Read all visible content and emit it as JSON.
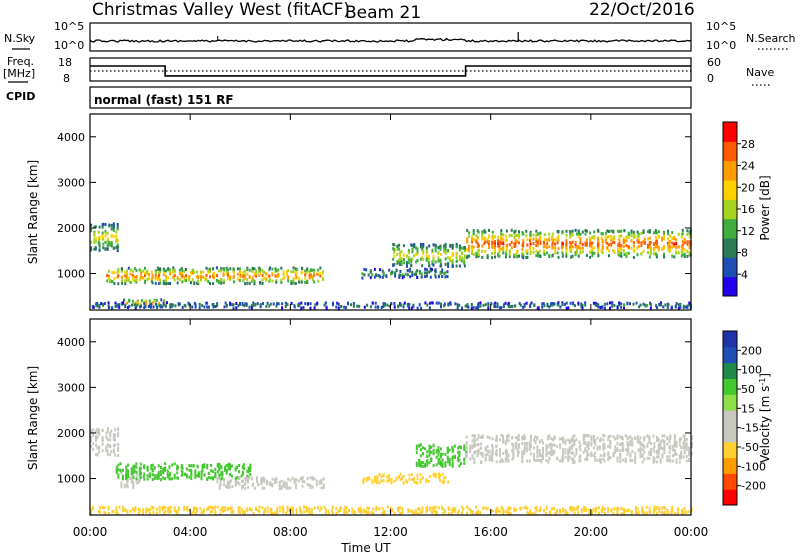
{
  "header": {
    "radar_name": "Christmas Valley West (fitACF)",
    "beam": "Beam 21",
    "date": "22/Oct/2016"
  },
  "status": {
    "nsky_label": "N.Sky",
    "nsky_ticks": [
      "10^5",
      "10^0"
    ],
    "nsearch_label": "N.Search",
    "nsearch_ticks": [
      "10^5",
      "10^0"
    ],
    "freq_label": "Freq.",
    "freq_unit": "[MHz]",
    "freq_ticks": [
      "18",
      "8"
    ],
    "nave_label": "Nave",
    "nave_ticks": [
      "60",
      "0"
    ],
    "freq_segments": [
      {
        "start_h": 0,
        "end_h": 3,
        "mhz": 14.5
      },
      {
        "start_h": 3,
        "end_h": 15,
        "mhz": 10.2
      },
      {
        "start_h": 15,
        "end_h": 24,
        "mhz": 14.5
      }
    ],
    "cpid_label": "CPID",
    "cpid_value": "normal (fast) 151 RF"
  },
  "colors": {
    "power": [
      "#2200ee",
      "#1f4fb4",
      "#2a7a55",
      "#3fae3f",
      "#a6d41e",
      "#ffd000",
      "#ff9c00",
      "#ff5a00",
      "#ff0000"
    ],
    "velocity": [
      "#ff0000",
      "#ff4a00",
      "#ff9c00",
      "#ffd030",
      "#c8c8c0",
      "#c8c8c0",
      "#8ee048",
      "#44c830",
      "#1f8a4a",
      "#1f4fb4",
      "#2233aa"
    ],
    "trace": "#000000"
  },
  "chart_data": [
    {
      "type": "heatmap",
      "panel": "power",
      "ylabel": "Slant Range [km]",
      "yticks": [
        "1000",
        "2000",
        "3000",
        "4000"
      ],
      "ylim": [
        200,
        4500
      ],
      "xlim": [
        0,
        24
      ],
      "colorbar_label": "Power [dB]",
      "colorbar_ticks": [
        "4",
        "8",
        "12",
        "16",
        "20",
        "24",
        "28"
      ],
      "clim": [
        0,
        32
      ],
      "regions": [
        {
          "start_h": 0.0,
          "end_h": 1.1,
          "center_km": 1800,
          "width_km": 600,
          "peak_db": 22
        },
        {
          "start_h": 0.6,
          "end_h": 9.3,
          "center_km": 950,
          "width_km": 350,
          "peak_db": 28
        },
        {
          "start_h": 1.3,
          "end_h": 3.0,
          "center_km": 350,
          "width_km": 150,
          "peak_db": 26
        },
        {
          "start_h": 10.8,
          "end_h": 14.3,
          "center_km": 1000,
          "width_km": 200,
          "peak_db": 14
        },
        {
          "start_h": 12.0,
          "end_h": 15.0,
          "center_km": 1400,
          "width_km": 500,
          "peak_db": 22
        },
        {
          "start_h": 15.0,
          "end_h": 24.0,
          "center_km": 1650,
          "width_km": 600,
          "peak_db": 30
        },
        {
          "start_h": 0.0,
          "end_h": 24.0,
          "center_km": 300,
          "width_km": 120,
          "peak_db": 12
        }
      ]
    },
    {
      "type": "heatmap",
      "panel": "velocity",
      "ylabel": "Slant Range [km]",
      "yticks": [
        "1000",
        "2000",
        "3000",
        "4000"
      ],
      "ylim": [
        200,
        4500
      ],
      "xlim": [
        0,
        24
      ],
      "xticks": [
        "00:00",
        "04:00",
        "08:00",
        "12:00",
        "16:00",
        "20:00",
        "00:00"
      ],
      "xlabel": "Time UT",
      "colorbar_label": "Velocity [m s",
      "colorbar_label_sup": "-1",
      "colorbar_label_end": "]",
      "colorbar_ticks": [
        "-200",
        "-100",
        "-50",
        "-15",
        "15",
        "50",
        "100",
        "200"
      ],
      "regions": [
        {
          "start_h": 0.0,
          "end_h": 1.1,
          "center_km": 1800,
          "width_km": 600,
          "vel": 0
        },
        {
          "start_h": 1.2,
          "end_h": 2.0,
          "center_km": 1000,
          "width_km": 400,
          "vel": 0
        },
        {
          "start_h": 1.0,
          "end_h": 6.5,
          "center_km": 1150,
          "width_km": 350,
          "vel": 40
        },
        {
          "start_h": 5.0,
          "end_h": 9.3,
          "center_km": 900,
          "width_km": 250,
          "vel": 0
        },
        {
          "start_h": 10.8,
          "end_h": 14.3,
          "center_km": 1000,
          "width_km": 200,
          "vel": -30
        },
        {
          "start_h": 13.0,
          "end_h": 15.0,
          "center_km": 1500,
          "width_km": 500,
          "vel": 30
        },
        {
          "start_h": 15.0,
          "end_h": 24.0,
          "center_km": 1650,
          "width_km": 600,
          "vel": 0
        },
        {
          "start_h": 0.0,
          "end_h": 24.0,
          "center_km": 300,
          "width_km": 150,
          "vel": -40
        }
      ]
    }
  ]
}
